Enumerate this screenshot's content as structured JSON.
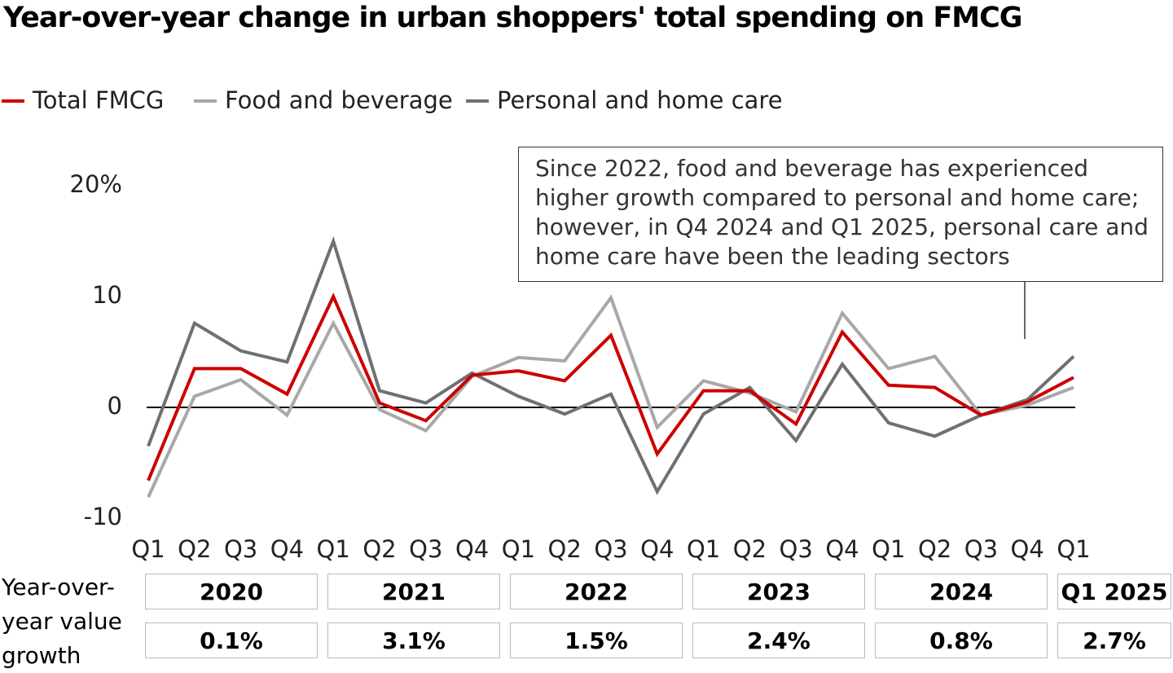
{
  "chart_data": {
    "type": "line",
    "title": "Year-over-year change in urban shoppers' total spending on FMCG",
    "categories": [
      "Q1",
      "Q2",
      "Q3",
      "Q4",
      "Q1",
      "Q2",
      "Q3",
      "Q4",
      "Q1",
      "Q2",
      "Q3",
      "Q4",
      "Q1",
      "Q2",
      "Q3",
      "Q4",
      "Q1",
      "Q2",
      "Q3",
      "Q4",
      "Q1"
    ],
    "series": [
      {
        "name": "Total FMCG",
        "color": "#cc0000",
        "values": [
          -6.6,
          3.5,
          3.5,
          1.2,
          10,
          0.4,
          -1.2,
          2.9,
          3.3,
          2.4,
          6.5,
          -4.2,
          1.5,
          1.5,
          -1.5,
          6.8,
          2.0,
          1.8,
          -0.7,
          0.5,
          2.7
        ]
      },
      {
        "name": "Food and beverage",
        "color": "#a8a8a8",
        "values": [
          -8.1,
          1.0,
          2.5,
          -0.7,
          7.6,
          -0.2,
          -2.1,
          2.8,
          4.5,
          4.2,
          9.9,
          -1.8,
          2.4,
          1.3,
          -0.4,
          8.5,
          3.5,
          4.6,
          -0.7,
          0.2,
          1.8
        ]
      },
      {
        "name": "Personal and home care",
        "color": "#707070",
        "values": [
          -3.5,
          7.6,
          5.1,
          4.1,
          15,
          1.5,
          0.4,
          3.1,
          1.0,
          -0.6,
          1.2,
          -7.6,
          -0.6,
          1.8,
          -3.0,
          3.9,
          -1.4,
          -2.6,
          -0.7,
          0.7,
          4.6
        ]
      }
    ],
    "ylim": [
      -10,
      20
    ],
    "yticks": [
      -10,
      0,
      10,
      {
        "value": 20,
        "label": "20%"
      }
    ],
    "grid": false,
    "legend": "top-left",
    "annotation": "Since 2022, food and beverage has experienced higher growth compared to personal and home care; however, in Q4 2024 and Q1 2025, personal care and home care have been the leading sectors",
    "table": {
      "label": "Year-over-year value growth",
      "columns": [
        {
          "period": "2020",
          "growth": "0.1%"
        },
        {
          "period": "2021",
          "growth": "3.1%"
        },
        {
          "period": "2022",
          "growth": "1.5%"
        },
        {
          "period": "2023",
          "growth": "2.4%"
        },
        {
          "period": "2024",
          "growth": "0.8%"
        },
        {
          "period": "Q1 2025",
          "growth": "2.7%"
        }
      ]
    }
  }
}
